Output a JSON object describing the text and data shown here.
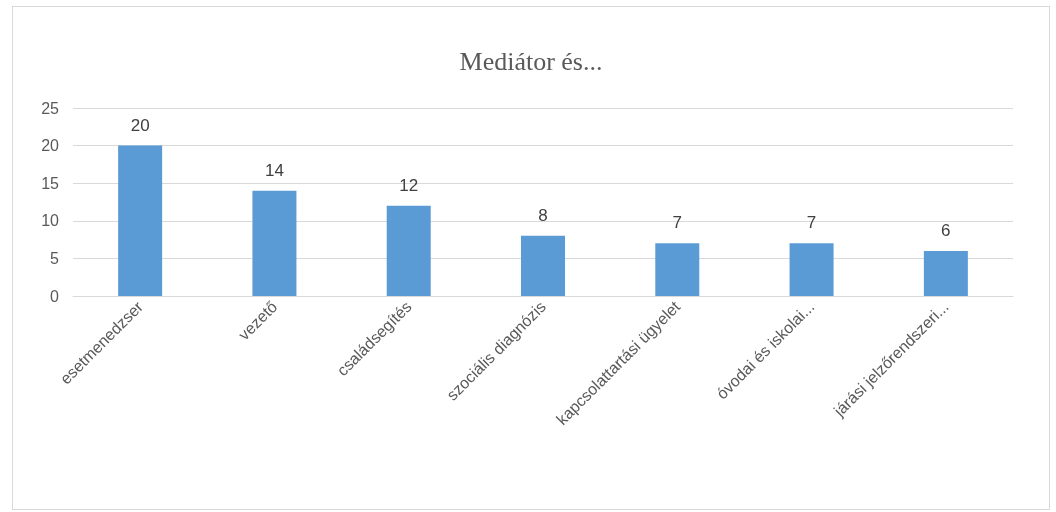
{
  "chart_data": {
    "type": "bar",
    "title": "Mediátor és...",
    "categories": [
      "esetmenedzser",
      "vezető",
      "családsegítés",
      "szociális diagnózis",
      "kapcsolattartási ügyelet",
      "óvodai és iskolai...",
      "járási jelzőrendszeri..."
    ],
    "values": [
      20,
      14,
      12,
      8,
      7,
      7,
      6
    ],
    "color": "#5b9bd5",
    "ylim": [
      0,
      25
    ],
    "yticks": [
      0,
      5,
      10,
      15,
      20,
      25
    ],
    "grid": "y",
    "data_labels": true
  }
}
